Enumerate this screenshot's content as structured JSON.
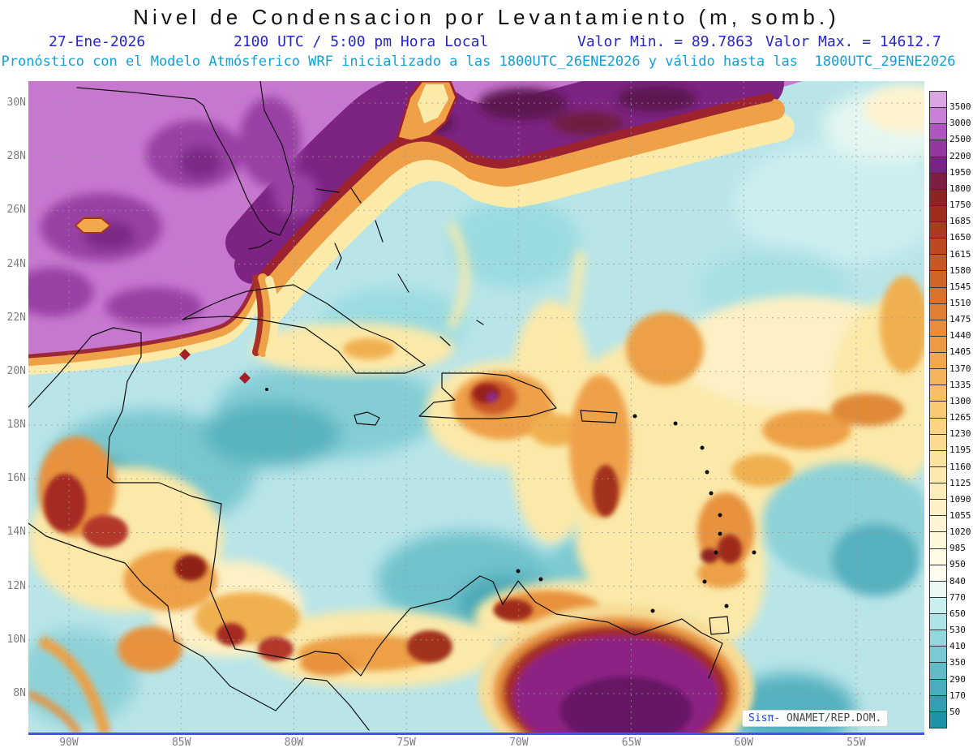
{
  "title": "Nivel de Condensacion por Levantamiento (m, somb.)",
  "header": {
    "date": "27-Ene-2026",
    "time_line": "2100 UTC / 5:00 pm Hora Local",
    "value_min": "Valor Min. = 89.7863",
    "value_max": "Valor Max. = 14612.7",
    "model_line": "Pronóstico con el Modelo Atmósferico WRF inicializado a las 1800UTC_26ENE2026 y válido hasta las  1800UTC_29ENE2026"
  },
  "axes": {
    "lat_ticks": [
      "30N",
      "28N",
      "26N",
      "24N",
      "22N",
      "20N",
      "18N",
      "16N",
      "14N",
      "12N",
      "10N",
      "8N"
    ],
    "lon_ticks": [
      "90W",
      "85W",
      "80W",
      "75W",
      "70W",
      "65W",
      "60W",
      "55W"
    ]
  },
  "legend": {
    "labels": [
      "3500",
      "3000",
      "2500",
      "2200",
      "1950",
      "1800",
      "1750",
      "1685",
      "1650",
      "1615",
      "1580",
      "1545",
      "1510",
      "1475",
      "1440",
      "1405",
      "1370",
      "1335",
      "1300",
      "1265",
      "1230",
      "1195",
      "1160",
      "1125",
      "1090",
      "1055",
      "1020",
      "985",
      "950",
      "840",
      "770",
      "650",
      "530",
      "410",
      "350",
      "290",
      "170",
      "50"
    ],
    "colors": [
      "#dca4e4",
      "#c87fd6",
      "#b054c2",
      "#9437a0",
      "#7b2384",
      "#7c1f44",
      "#8f2222",
      "#a02c1d",
      "#ae3a1e",
      "#bc4921",
      "#c85724",
      "#d26428",
      "#da722d",
      "#e27f33",
      "#e88d3b",
      "#ee9a44",
      "#f2a74e",
      "#f5b35a",
      "#f8bf67",
      "#fac974",
      "#fbd382",
      "#fcdb90",
      "#fde29f",
      "#fde8ad",
      "#feedba",
      "#fef1c6",
      "#fef4d1",
      "#fef7da",
      "#fefae4",
      "#fefcee",
      "#e9f8f4",
      "#c9eef0",
      "#aee3e8",
      "#93d7de",
      "#79cad4",
      "#60bcc9",
      "#48aebe",
      "#32a0b2",
      "#1e92a6"
    ]
  },
  "watermark": {
    "brand": "Sisπ",
    "text": "- ONAMET/REP.DOM."
  },
  "chart_data": {
    "type": "heatmap",
    "title": "Nivel de Condensacion por Levantamiento (m, somb.)",
    "valid_date": "27-Ene-2026",
    "valid_time": "2100 UTC / 5:00 pm Hora Local",
    "value_min": 89.7863,
    "value_max": 14612.7,
    "model_init": "1800UTC_26ENE2026",
    "model_valid_until": "1800UTC_29ENE2026",
    "lat_ticks": [
      "30N",
      "28N",
      "26N",
      "24N",
      "22N",
      "20N",
      "18N",
      "16N",
      "14N",
      "12N",
      "10N",
      "8N"
    ],
    "lon_ticks": [
      "90W",
      "85W",
      "80W",
      "75W",
      "70W",
      "65W",
      "60W",
      "55W"
    ],
    "contour_levels_m": [
      50,
      170,
      290,
      350,
      410,
      530,
      650,
      770,
      840,
      950,
      985,
      1020,
      1055,
      1090,
      1125,
      1160,
      1195,
      1230,
      1265,
      1300,
      1335,
      1370,
      1405,
      1440,
      1475,
      1510,
      1545,
      1580,
      1615,
      1650,
      1685,
      1750,
      1800,
      1950,
      2200,
      2500,
      3000,
      3500
    ]
  },
  "colors": {
    "header_blue": "#2626cc",
    "model_line_cyan": "#12a0dc",
    "axis_label_gray": "#7d7d7d",
    "map_frame_bottom_blue": "#4353e8",
    "watermark_brand_blue": "#2745d4"
  }
}
